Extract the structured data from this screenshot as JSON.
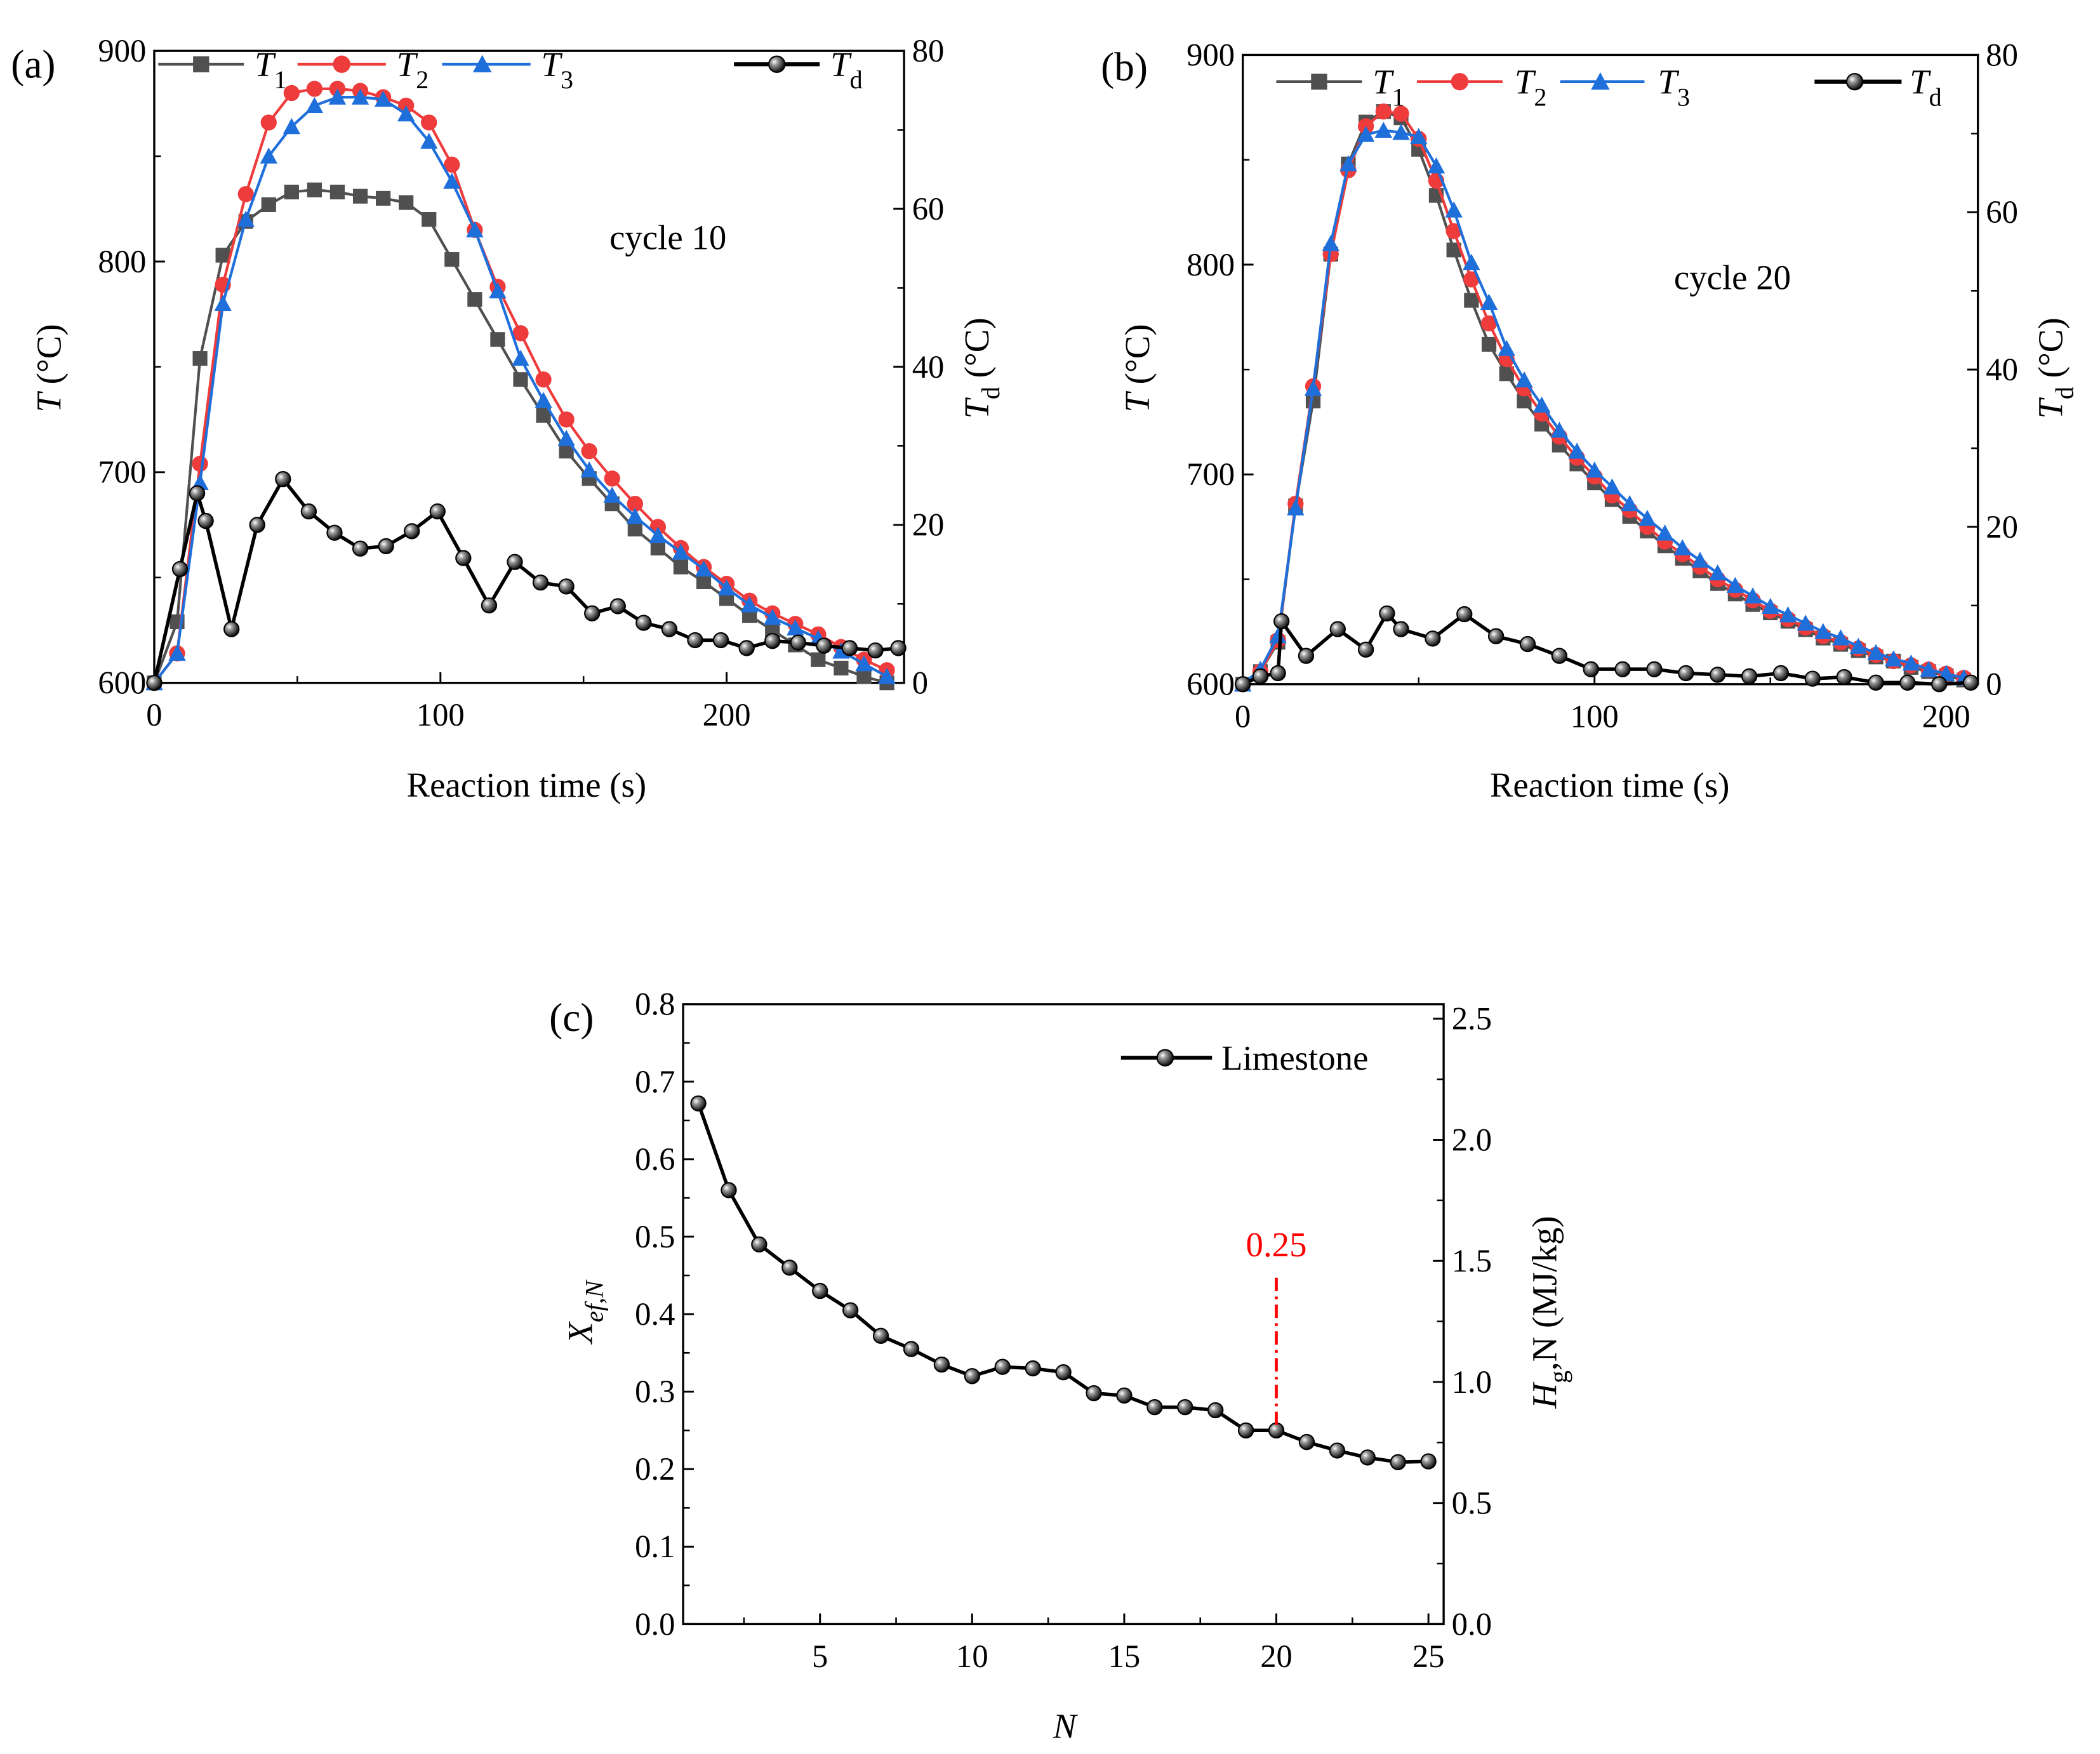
{
  "chart_data": [
    {
      "type": "line",
      "panel_label": "(a)",
      "annotation": "cycle 10",
      "xlabel": "Reaction time (s)",
      "ylabel": {
        "main": "T",
        "sub": "",
        "unit": " (°C)"
      },
      "y2label": {
        "main": "T",
        "sub": "d",
        "unit": " (°C)"
      },
      "xlim": [
        0,
        262
      ],
      "ylim": [
        600,
        900
      ],
      "y2lim": [
        0,
        80
      ],
      "x_ticks": [
        0,
        100,
        200
      ],
      "x_tick_labels": [
        "0",
        "100",
        "200"
      ],
      "y_ticks": [
        600,
        700,
        800,
        900
      ],
      "y_tick_labels": [
        "600",
        "700",
        "800",
        "900"
      ],
      "y2_ticks": [
        0,
        20,
        40,
        60,
        80
      ],
      "y2_tick_labels": [
        "0",
        "20",
        "40",
        "60",
        "80"
      ],
      "legend_placement": "top",
      "series": [
        {
          "name": {
            "main": "T",
            "sub": "1"
          },
          "color": "#505050",
          "marker": "square",
          "axis": "left",
          "x": [
            0,
            8,
            16,
            24,
            32,
            40,
            48,
            56,
            64,
            72,
            80,
            88,
            96,
            104,
            112,
            120,
            128,
            136,
            144,
            152,
            160,
            168,
            176,
            184,
            192,
            200,
            208,
            216,
            224,
            232,
            240,
            248,
            256
          ],
          "values": [
            600,
            629,
            754,
            803,
            819,
            827,
            833,
            834,
            833,
            831,
            830,
            828,
            820,
            801,
            782,
            763,
            744,
            727,
            710,
            697,
            685,
            673,
            664,
            655,
            648,
            640,
            632,
            625,
            618,
            611,
            607,
            603,
            600
          ]
        },
        {
          "name": {
            "main": "T",
            "sub": "2"
          },
          "color": "#ee3b3b",
          "marker": "circle",
          "axis": "left",
          "x": [
            0,
            8,
            16,
            24,
            32,
            40,
            48,
            56,
            64,
            72,
            80,
            88,
            96,
            104,
            112,
            120,
            128,
            136,
            144,
            152,
            160,
            168,
            176,
            184,
            192,
            200,
            208,
            216,
            224,
            232,
            240,
            248,
            256
          ],
          "values": [
            600,
            614,
            704,
            789,
            832,
            866,
            880,
            882,
            882,
            881,
            878,
            874,
            866,
            846,
            815,
            788,
            766,
            744,
            725,
            710,
            697,
            685,
            674,
            664,
            655,
            647,
            639,
            633,
            628,
            623,
            617,
            611,
            606
          ]
        },
        {
          "name": {
            "main": "T",
            "sub": "3"
          },
          "color": "#1f6fdb",
          "marker": "triangle",
          "axis": "left",
          "x": [
            0,
            8,
            16,
            24,
            32,
            40,
            48,
            56,
            64,
            72,
            80,
            88,
            96,
            104,
            112,
            120,
            128,
            136,
            144,
            152,
            160,
            168,
            176,
            184,
            192,
            200,
            208,
            216,
            224,
            232,
            240,
            248,
            256
          ],
          "values": [
            600,
            614,
            695,
            780,
            820,
            850,
            864,
            874,
            878,
            878,
            877,
            870,
            857,
            838,
            815,
            786,
            754,
            734,
            716,
            701,
            689,
            679,
            670,
            662,
            654,
            645,
            637,
            631,
            626,
            621,
            615,
            609,
            603
          ]
        },
        {
          "name": {
            "main": "T",
            "sub": "d"
          },
          "color": "#000000",
          "marker": "ball",
          "axis": "right",
          "x": [
            0,
            9,
            15,
            18,
            27,
            36,
            45,
            54,
            63,
            72,
            81,
            90,
            99,
            108,
            117,
            126,
            135,
            144,
            153,
            162,
            171,
            180,
            189,
            198,
            207,
            216,
            225,
            234,
            243,
            252,
            260
          ],
          "values": [
            0,
            14.4,
            24,
            20.5,
            6.8,
            20,
            25.8,
            21.7,
            19,
            17,
            17.3,
            19.2,
            21.7,
            15.8,
            9.8,
            15.3,
            12.7,
            12.2,
            8.8,
            9.7,
            7.6,
            6.8,
            5.4,
            5.4,
            4.4,
            5.3,
            5.1,
            4.7,
            4.4,
            4.1,
            4.4
          ]
        }
      ]
    },
    {
      "type": "line",
      "panel_label": "(b)",
      "annotation": "cycle 20",
      "xlabel": "Reaction time (s)",
      "ylabel": {
        "main": "T",
        "sub": "",
        "unit": " (°C)"
      },
      "y2label": {
        "main": "T",
        "sub": "d",
        "unit": " (°C)"
      },
      "xlim": [
        0,
        209
      ],
      "ylim": [
        600,
        900
      ],
      "y2lim": [
        0,
        80
      ],
      "x_ticks": [
        0,
        100,
        200
      ],
      "x_tick_labels": [
        "0",
        "100",
        "200"
      ],
      "y_ticks": [
        600,
        700,
        800,
        900
      ],
      "y_tick_labels": [
        "600",
        "700",
        "800",
        "900"
      ],
      "y2_ticks": [
        0,
        20,
        40,
        60,
        80
      ],
      "y2_tick_labels": [
        "0",
        "20",
        "40",
        "60",
        "80"
      ],
      "legend_placement": "top",
      "series": [
        {
          "name": {
            "main": "T",
            "sub": "1"
          },
          "color": "#505050",
          "marker": "square",
          "axis": "left",
          "x": [
            0,
            5,
            10,
            15,
            20,
            25,
            30,
            35,
            40,
            45,
            50,
            55,
            60,
            65,
            70,
            75,
            80,
            85,
            90,
            95,
            100,
            105,
            110,
            115,
            120,
            125,
            130,
            135,
            140,
            145,
            150,
            155,
            160,
            165,
            170,
            175,
            180,
            185,
            190,
            195,
            200,
            205
          ],
          "values": [
            600,
            606,
            620,
            685,
            735,
            805,
            848,
            868,
            873,
            870,
            855,
            833,
            807,
            783,
            762,
            748,
            735,
            724,
            714,
            705,
            696,
            688,
            680,
            673,
            666,
            660,
            654,
            648,
            643,
            638,
            634,
            630,
            626,
            622,
            619,
            616,
            613,
            611,
            608,
            606,
            604,
            602
          ]
        },
        {
          "name": {
            "main": "T",
            "sub": "2"
          },
          "color": "#ee3b3b",
          "marker": "circle",
          "axis": "left",
          "x": [
            0,
            5,
            10,
            15,
            20,
            25,
            30,
            35,
            40,
            45,
            50,
            55,
            60,
            65,
            70,
            75,
            80,
            85,
            90,
            95,
            100,
            105,
            110,
            115,
            120,
            125,
            130,
            135,
            140,
            145,
            150,
            155,
            160,
            165,
            170,
            175,
            180,
            185,
            190,
            195,
            200,
            205
          ],
          "values": [
            600,
            606,
            621,
            686,
            742,
            805,
            845,
            866,
            873,
            872,
            860,
            840,
            816,
            793,
            772,
            755,
            741,
            729,
            718,
            708,
            699,
            690,
            683,
            675,
            668,
            662,
            656,
            650,
            645,
            640,
            635,
            631,
            627,
            623,
            620,
            617,
            614,
            611,
            609,
            607,
            605,
            603
          ]
        },
        {
          "name": {
            "main": "T",
            "sub": "3"
          },
          "color": "#1f6fdb",
          "marker": "triangle",
          "axis": "left",
          "x": [
            0,
            5,
            10,
            15,
            20,
            25,
            30,
            35,
            40,
            45,
            50,
            55,
            60,
            65,
            70,
            75,
            80,
            85,
            90,
            95,
            100,
            105,
            110,
            115,
            120,
            125,
            130,
            135,
            140,
            145,
            150,
            155,
            160,
            165,
            170,
            175,
            180,
            185,
            190,
            195,
            200,
            205
          ],
          "values": [
            600,
            607,
            623,
            684,
            741,
            810,
            848,
            862,
            864,
            863,
            861,
            847,
            826,
            801,
            782,
            760,
            745,
            733,
            721,
            711,
            702,
            694,
            686,
            679,
            672,
            665,
            659,
            653,
            647,
            642,
            637,
            633,
            629,
            625,
            622,
            618,
            615,
            612,
            610,
            607,
            605,
            603
          ]
        },
        {
          "name": {
            "main": "T",
            "sub": "d"
          },
          "color": "#000000",
          "marker": "ball",
          "axis": "right",
          "x": [
            0,
            5,
            10,
            11,
            18,
            27,
            35,
            41,
            45,
            54,
            63,
            72,
            81,
            90,
            99,
            108,
            117,
            126,
            135,
            144,
            153,
            162,
            171,
            180,
            189,
            198,
            207
          ],
          "values": [
            0,
            1,
            1.4,
            8,
            3.6,
            7,
            4.4,
            9,
            7,
            5.8,
            8.9,
            6.1,
            5.1,
            3.6,
            1.9,
            1.9,
            1.9,
            1.4,
            1.2,
            1,
            1.4,
            0.7,
            0.9,
            0.2,
            0.2,
            0,
            0.2
          ]
        }
      ]
    },
    {
      "type": "line",
      "panel_label": "(c)",
      "xlabel": "N",
      "ylabel": {
        "main": "X",
        "sub": "ef,N",
        "unit": ""
      },
      "y2label": {
        "main": "H",
        "sub": "g",
        "unit": ",N (MJ/kg)"
      },
      "xlim": [
        0.5,
        25.5
      ],
      "ylim": [
        0,
        0.8
      ],
      "y2lim": [
        0,
        2.56
      ],
      "x_ticks": [
        5,
        10,
        15,
        20,
        25
      ],
      "x_tick_labels": [
        "5",
        "10",
        "15",
        "20",
        "25"
      ],
      "y_ticks": [
        0,
        0.1,
        0.2,
        0.3,
        0.4,
        0.5,
        0.6,
        0.7,
        0.8
      ],
      "y_tick_labels": [
        "0.0",
        "0.1",
        "0.2",
        "0.3",
        "0.4",
        "0.5",
        "0.6",
        "0.7",
        "0.8"
      ],
      "y2_ticks": [
        0,
        0.5,
        1.0,
        1.5,
        2.0,
        2.5
      ],
      "y2_tick_labels": [
        "0.0",
        "0.5",
        "1.0",
        "1.5",
        "2.0",
        "2.5"
      ],
      "legend_placement": "top-right",
      "annotation_value": {
        "text": "0.25",
        "x": 20,
        "y": 0.25,
        "color": "#ff0000"
      },
      "series": [
        {
          "name": {
            "main": "Limestone",
            "sub": ""
          },
          "color": "#000000",
          "marker": "ball",
          "axis": "left",
          "x": [
            1,
            2,
            3,
            4,
            5,
            6,
            7,
            8,
            9,
            10,
            11,
            12,
            13,
            14,
            15,
            16,
            17,
            18,
            19,
            20,
            21,
            22,
            23,
            24,
            25
          ],
          "values": [
            0.672,
            0.56,
            0.49,
            0.46,
            0.43,
            0.405,
            0.372,
            0.355,
            0.335,
            0.32,
            0.332,
            0.33,
            0.325,
            0.298,
            0.295,
            0.28,
            0.28,
            0.276,
            0.25,
            0.25,
            0.235,
            0.224,
            0.215,
            0.209,
            0.21
          ]
        }
      ]
    }
  ]
}
